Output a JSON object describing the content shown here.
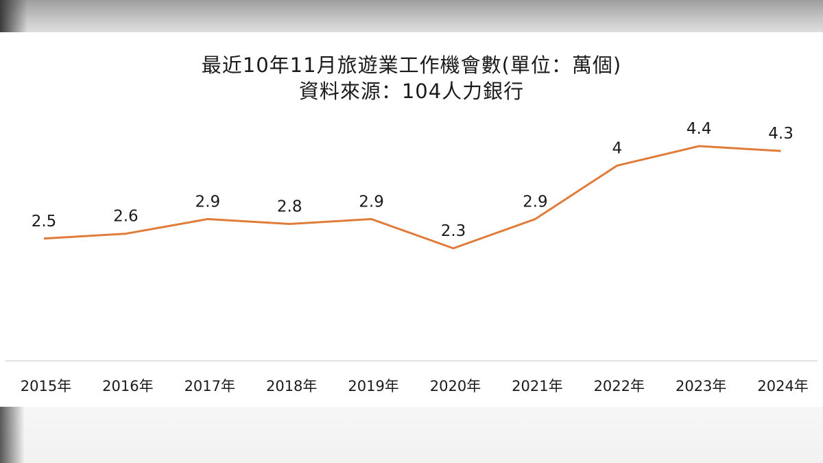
{
  "chart_data": {
    "type": "line",
    "title": "最近10年11月旅遊業工作機會數(單位：萬個)",
    "subtitle": "資料來源：104人力銀行",
    "categories": [
      "2015年",
      "2016年",
      "2017年",
      "2018年",
      "2019年",
      "2020年",
      "2021年",
      "2022年",
      "2023年",
      "2024年"
    ],
    "values": [
      2.5,
      2.6,
      2.9,
      2.8,
      2.9,
      2.3,
      2.9,
      4,
      4.4,
      4.3
    ],
    "data_labels": [
      "2.5",
      "2.6",
      "2.9",
      "2.8",
      "2.9",
      "2.3",
      "2.9",
      "4",
      "4.4",
      "4.3"
    ],
    "line_color": "#e07b39",
    "ylim": [
      0,
      5
    ],
    "grid": false,
    "legend": "none"
  }
}
